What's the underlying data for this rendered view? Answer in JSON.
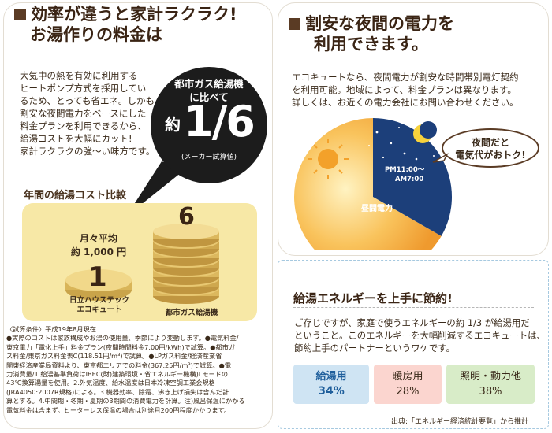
{
  "left": {
    "heading_line1": "効率が違うと家計ラクラク!",
    "heading_line2": "お湯作りの料金は",
    "body": [
      "大気中の熱を有効に利用する",
      "ヒートポンプ方式を採用してい",
      "るため、とっても省エネ。しかも、",
      "割安な夜間電力をベースにした",
      "料金プランを利用できるから、",
      "給湯コストを大幅にカット!",
      "家計ラクラクの強〜い味方です。"
    ],
    "bubble": {
      "compare_line1": "都市ガス給湯機",
      "compare_line2": "に比べて",
      "yaku": "約",
      "fraction": "1/6",
      "note": "(メーカー試算値)"
    },
    "cost_title": "年間の給湯コスト比較",
    "cost_chart": {
      "ecocute_label_line1": "月々平均",
      "ecocute_label_line2": "約 1,000 円",
      "ecocute_value": "1",
      "ecocute_caption_line1": "日立ハウステック",
      "ecocute_caption_line2": "エコキュート",
      "gas_value": "6",
      "gas_caption": "都市ガス給湯機"
    },
    "conditions": [
      "〈試算条件〉平成19年8月現在",
      "●実際のコストは家族構成やお湯の使用量、季節により変動します。●電気料金/",
      "東京電力「電化上手」料金プラン(夜間時間料金7.00円/kWh)で試算。●都市ガ",
      "ス料金/東京ガス料金表C(118.51円/m³)で試算。●LPガス料金/経済産業省",
      "関東経済産業局資料より、東京都エリアでの料金(367.25円/m³)で試算。●電",
      "力消費量/1.給湯基準負荷はIBEC(財)建築環境・省エネルギー機構)Lモードの",
      "43℃換算湯量を使用。2.外気温度、給水温度は日本冷凍空調工業会規格",
      "(JRA4050:2007R規格)による。3.機器効率、除霜、沸き上げ損失は含んだ計",
      "算とする。4.中間期・冬期・夏期の3期間の消費電力を計算。注)風呂保温にかかる",
      "電気料金は含まず。ヒーターレス保温の場合は別途月200円程度かかります。"
    ]
  },
  "right_top": {
    "heading_line1": "割安な夜間の電力を",
    "heading_line2": "利用できます。",
    "body": [
      "エコキュートなら、夜間電力が割安な時間帯別電灯契約",
      "を利用可能。地域によって、料金プランは異なります。",
      "詳しくは、お近くの電力会社にお問い合わせください。"
    ],
    "pie": {
      "night_time_line1": "PM11:00〜",
      "night_time_line2": "AM7:00",
      "day_label": "昼間電力",
      "night_fraction": 0.333,
      "colors": {
        "night": "#1c3f7a",
        "day": "#f3a93a",
        "day_light": "#fde3a6"
      }
    },
    "callout_line1": "夜間だと",
    "callout_line2": "電気代がおトク!"
  },
  "right_bottom": {
    "title": "給湯エネルギーを上手に節約!",
    "body": [
      "ご存じですが、家庭で使うエネルギーの約 1/3 が給湯用だ",
      "ということ。このエネルギーを大幅削減するエコキュートは、",
      "節約上手のパートナーというワケです。"
    ],
    "breakdown": [
      {
        "label": "給湯用",
        "percent": "34%",
        "color": "#cfe4f3",
        "emphasis": true
      },
      {
        "label": "暖房用",
        "percent": "28%",
        "color": "#fbd5cf",
        "emphasis": false
      },
      {
        "label": "照明・動力他",
        "percent": "38%",
        "color": "#d8ecc8",
        "emphasis": false
      }
    ],
    "source": "出典:「エネルギー経済統計要覧」から推計"
  }
}
